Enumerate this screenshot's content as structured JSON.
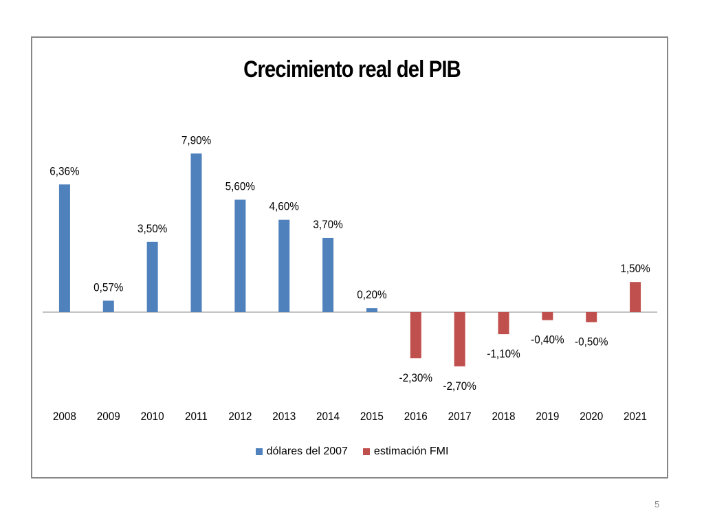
{
  "page": {
    "number": "5"
  },
  "colors": {
    "series_0": "#4f81bd",
    "series_1": "#c0504d",
    "axis": "#868686",
    "text": "#000000"
  },
  "chart_data": {
    "type": "bar",
    "title": "Crecimiento real del PIB",
    "xlabel": "",
    "ylabel": "",
    "categories": [
      "2008",
      "2009",
      "2010",
      "2011",
      "2012",
      "2013",
      "2014",
      "2015",
      "2016",
      "2017",
      "2018",
      "2019",
      "2020",
      "2021"
    ],
    "series": [
      {
        "name": "dólares del 2007",
        "values": [
          6.36,
          0.57,
          3.5,
          7.9,
          5.6,
          4.6,
          3.7,
          0.2,
          null,
          null,
          null,
          null,
          null,
          null
        ]
      },
      {
        "name": "estimación FMI",
        "values": [
          null,
          null,
          null,
          null,
          null,
          null,
          null,
          null,
          -2.3,
          -2.7,
          -1.1,
          -0.4,
          -0.5,
          1.5
        ]
      }
    ],
    "data_labels": [
      "6,36%",
      "0,57%",
      "3,50%",
      "7,90%",
      "5,60%",
      "4,60%",
      "3,70%",
      "0,20%",
      "-2,30%",
      "-2,70%",
      "-1,10%",
      "-0,40%",
      "-0,50%",
      "1,50%"
    ],
    "ylim": [
      -3,
      9
    ],
    "grid": false,
    "legend_position": "bottom"
  }
}
